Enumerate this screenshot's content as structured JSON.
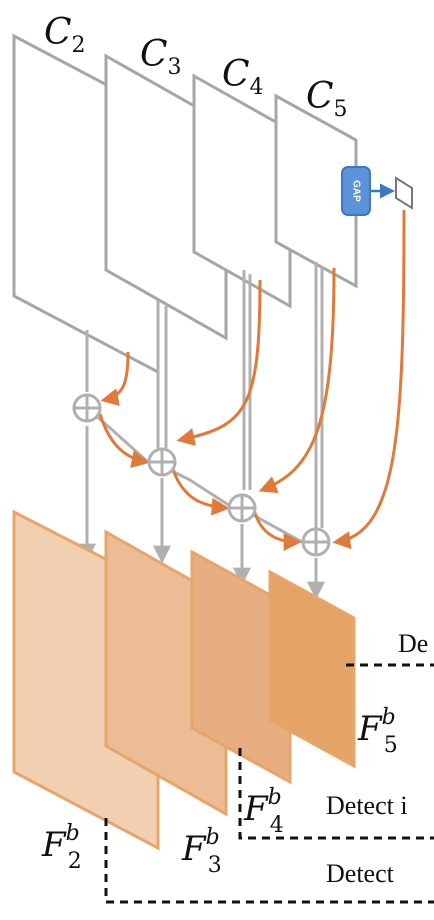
{
  "colors": {
    "box_stroke": "#a6a6a6",
    "box_fill": "#ffffff",
    "orange_line": "#e07a3a",
    "gray_line": "#b0b0b0",
    "gap_fill": "#5b92d8",
    "gap_stroke": "#3f78c2",
    "blue_arrow": "#3f78c2",
    "fb2_fill": "#f1cfb1",
    "fb3_fill": "#ecbd94",
    "fb4_fill": "#e7ae81",
    "fb5_fill": "#e4a466",
    "fb_stroke": "#e8a56a"
  },
  "backbone_features": [
    {
      "base": "C",
      "sub": "2"
    },
    {
      "base": "C",
      "sub": "3"
    },
    {
      "base": "C",
      "sub": "4"
    },
    {
      "base": "C",
      "sub": "5"
    }
  ],
  "gap_label": "GAP",
  "output_features": [
    {
      "base": "F",
      "sub": "2",
      "sup": "b"
    },
    {
      "base": "F",
      "sub": "3",
      "sup": "b"
    },
    {
      "base": "F",
      "sub": "4",
      "sup": "b"
    },
    {
      "base": "F",
      "sub": "5",
      "sup": "b"
    }
  ],
  "detect_labels": {
    "top": "De",
    "middle": "Detect i",
    "bottom": "Detect"
  },
  "fusion_symbol": "⊕"
}
